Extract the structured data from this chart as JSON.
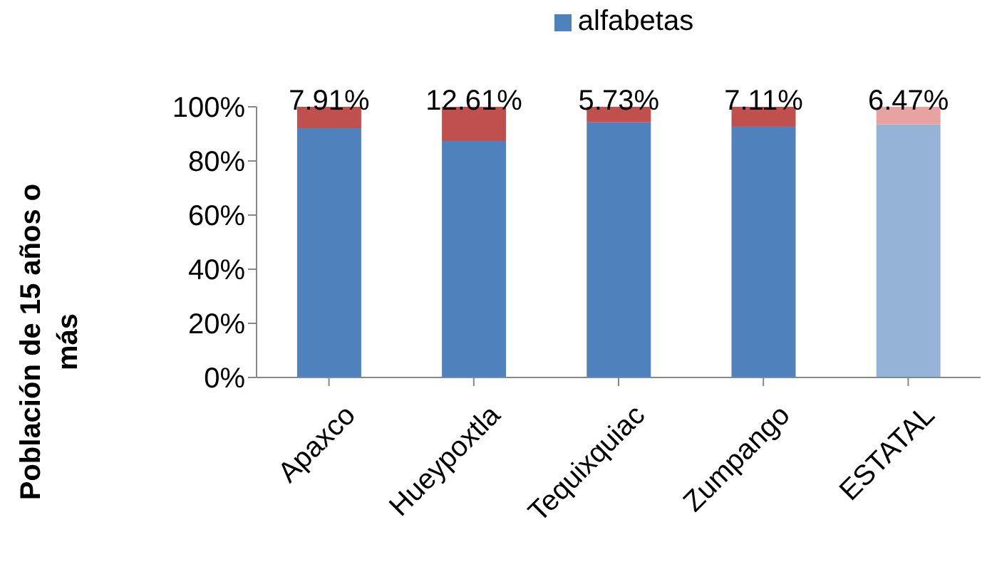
{
  "chart_data": {
    "type": "bar",
    "stacked": true,
    "ylabel": "Población de 15 años o más",
    "categories": [
      "Apaxco",
      "Hueypoxtla",
      "Tequixquiac",
      "Zumpango",
      "ESTATAL"
    ],
    "series": [
      {
        "name": "alfabetas",
        "color": "#4f81bd",
        "colors": [
          "#4f81bd",
          "#4f81bd",
          "#4f81bd",
          "#4f81bd",
          "#95b3d7"
        ],
        "values": [
          92.09,
          87.39,
          94.27,
          92.89,
          93.53
        ]
      },
      {
        "color": "#c0504d",
        "colors": [
          "#c0504d",
          "#c0504d",
          "#c0504d",
          "#c0504d",
          "#e6a3a2"
        ],
        "values": [
          7.91,
          12.61,
          5.73,
          7.11,
          6.47
        ],
        "value_labels": [
          "7.91%",
          "12.61%",
          "5.73%",
          "7.11%",
          "6.47%"
        ]
      }
    ],
    "ylim": [
      0,
      100
    ],
    "yticks": [
      {
        "value": 0,
        "label": "0%"
      },
      {
        "value": 20,
        "label": "20%"
      },
      {
        "value": 40,
        "label": "40%"
      },
      {
        "value": 60,
        "label": "60%"
      },
      {
        "value": 80,
        "label": "80%"
      },
      {
        "value": 100,
        "label": "100%"
      }
    ],
    "grid": false,
    "legend": "top"
  }
}
